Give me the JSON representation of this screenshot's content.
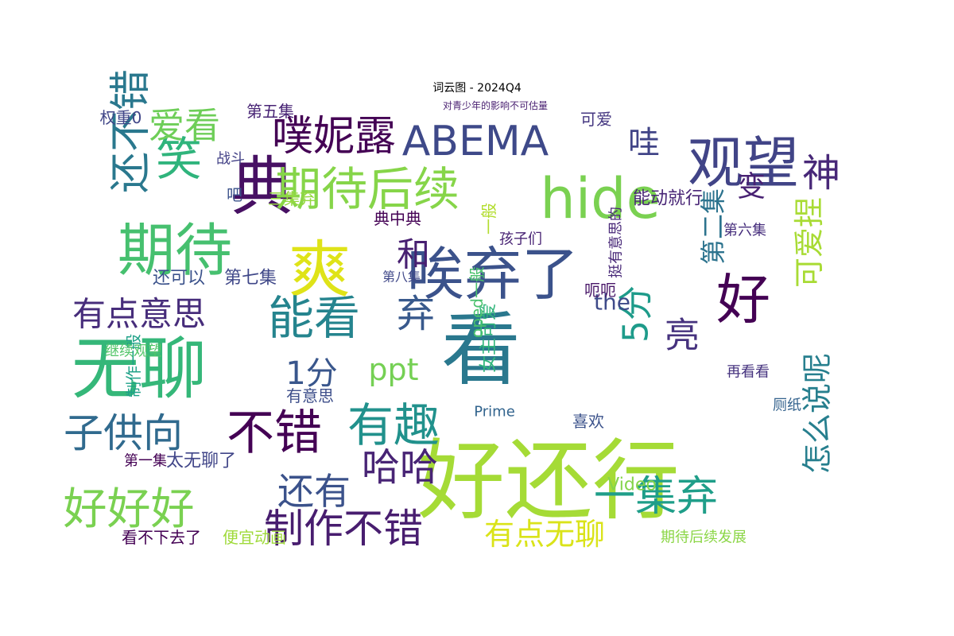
{
  "title": "词云图 - 2024Q4",
  "words": [
    {
      "text": "好还行",
      "color": "#a5db36"
    },
    {
      "text": "看",
      "color": "#2a788e"
    },
    {
      "text": "无聊",
      "color": "#35b779"
    },
    {
      "text": "典",
      "color": "#471063"
    },
    {
      "text": "爽",
      "color": "#dfe318"
    },
    {
      "text": "唉弃了",
      "color": "#3b528b"
    },
    {
      "text": "期待",
      "color": "#46c06f"
    },
    {
      "text": "hide",
      "color": "#7ad151"
    },
    {
      "text": "观望",
      "color": "#414487"
    },
    {
      "text": "期待后续",
      "color": "#86d549"
    },
    {
      "text": "噗妮露",
      "color": "#440154"
    },
    {
      "text": "ABEMA",
      "color": "#3e4989"
    },
    {
      "text": "好",
      "color": "#440154"
    },
    {
      "text": "还不错",
      "color": "#2a788e"
    },
    {
      "text": "笑",
      "color": "#2fb47c"
    },
    {
      "text": "爱看",
      "color": "#6ece58"
    },
    {
      "text": "有趣",
      "color": "#21918c"
    },
    {
      "text": "子供向",
      "color": "#306a8e"
    },
    {
      "text": "不错",
      "color": "#440154"
    },
    {
      "text": "好好好",
      "color": "#7ad151"
    },
    {
      "text": "能看",
      "color": "#25848e"
    },
    {
      "text": "弃",
      "color": "#38598c"
    },
    {
      "text": "和",
      "color": "#482071"
    },
    {
      "text": "哇",
      "color": "#414487"
    },
    {
      "text": "神",
      "color": "#482878"
    },
    {
      "text": "一集弃",
      "color": "#1f9e89"
    },
    {
      "text": "制作不错",
      "color": "#481d6f"
    },
    {
      "text": "怎么说呢",
      "color": "#277f8e"
    },
    {
      "text": "可爱捏",
      "color": "#a8db34"
    },
    {
      "text": "有点意思",
      "color": "#472d7b"
    },
    {
      "text": "哈哈",
      "color": "#482475"
    },
    {
      "text": "还有",
      "color": "#3b528b"
    },
    {
      "text": "有点无聊",
      "color": "#dae319"
    },
    {
      "text": "ppt",
      "color": "#75d054"
    },
    {
      "text": "1分",
      "color": "#39568c"
    },
    {
      "text": "5分",
      "color": "#1e9b8a"
    },
    {
      "text": "第二集",
      "color": "#2c738e"
    },
    {
      "text": "亮",
      "color": "#46327e"
    },
    {
      "text": "变",
      "color": "#482173"
    },
    {
      "text": "the",
      "color": "#3e4a89"
    },
    {
      "text": "女主可爱",
      "color": "#31b57b"
    },
    {
      "text": "能动就行",
      "color": "#482576"
    },
    {
      "text": "还可以",
      "color": "#3b528b"
    },
    {
      "text": "第七集",
      "color": "#3f4788"
    },
    {
      "text": "第五集",
      "color": "#482475"
    },
    {
      "text": "权重0",
      "color": "#404688"
    },
    {
      "text": "典中典",
      "color": "#440154"
    },
    {
      "text": "可爱",
      "color": "#453781"
    },
    {
      "text": "有意思",
      "color": "#3d4e8a"
    },
    {
      "text": "喜欢",
      "color": "#3b528b"
    },
    {
      "text": "挺有意思的",
      "color": "#482878"
    },
    {
      "text": "呃呃",
      "color": "#481668"
    },
    {
      "text": "三集弃",
      "color": "#95d840"
    },
    {
      "text": "一般",
      "color": "#b2dd2d"
    },
    {
      "text": "oped一般",
      "color": "#4ac16d"
    },
    {
      "text": "Video",
      "color": "#84d44b"
    },
    {
      "text": "太无聊了",
      "color": "#404588"
    },
    {
      "text": "第一集",
      "color": "#440154"
    },
    {
      "text": "看不下去了",
      "color": "#440154"
    },
    {
      "text": "便宜动画",
      "color": "#9fda3a"
    },
    {
      "text": "期待后续发展",
      "color": "#8bd646"
    },
    {
      "text": "制作一般",
      "color": "#1fa188"
    },
    {
      "text": "继续观望",
      "color": "#52c569"
    },
    {
      "text": "战斗",
      "color": "#424186"
    },
    {
      "text": "吧",
      "color": "#3b528b"
    },
    {
      "text": "第六集",
      "color": "#472f7d"
    },
    {
      "text": "厕纸",
      "color": "#33628d"
    },
    {
      "text": "再看看",
      "color": "#46337f"
    },
    {
      "text": "孩子们",
      "color": "#482374"
    },
    {
      "text": "第八集",
      "color": "#3f4788"
    },
    {
      "text": "Prime",
      "color": "#32648e"
    },
    {
      "text": "对青少年的影响不可估量",
      "color": "#481f70"
    }
  ]
}
